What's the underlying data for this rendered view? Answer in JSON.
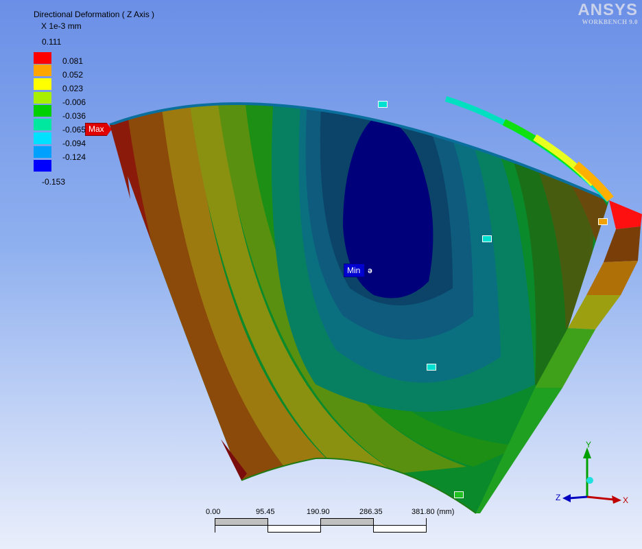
{
  "legend": {
    "title": "Directional Deformation ( Z Axis )",
    "units": "X 1e-3 mm",
    "max_value": "0.111",
    "min_value": "-0.153",
    "entries": [
      {
        "label": "0.081",
        "color": "#ff0000"
      },
      {
        "label": "0.052",
        "color": "#ffa500"
      },
      {
        "label": "0.023",
        "color": "#ffff00"
      },
      {
        "label": "-0.006",
        "color": "#a8f000"
      },
      {
        "label": "-0.036",
        "color": "#00d000"
      },
      {
        "label": "-0.065",
        "color": "#00e8a0"
      },
      {
        "label": "-0.094",
        "color": "#00e0ff"
      },
      {
        "label": "-0.124",
        "color": "#00a0ff"
      },
      {
        "label": "",
        "color": "#0000ff"
      }
    ]
  },
  "logo": {
    "brand": "ANSYS",
    "subtitle": "WORKBENCH 9.0"
  },
  "probes": {
    "max_label": "Max",
    "min_label": "Min"
  },
  "scale": {
    "labels": [
      "0.00",
      "95.45",
      "190.90",
      "286.35",
      "381.80 (mm)"
    ]
  },
  "triad": {
    "x": "X",
    "y": "Y",
    "z": "Z"
  },
  "contour_colors": [
    "#8b1a0a",
    "#8b4a0a",
    "#9c7a10",
    "#8a9010",
    "#5a9010",
    "#1d8f14",
    "#0a8a2a",
    "#078062",
    "#0a7080",
    "#0e5b7d",
    "#0b4468",
    "#00007a"
  ]
}
